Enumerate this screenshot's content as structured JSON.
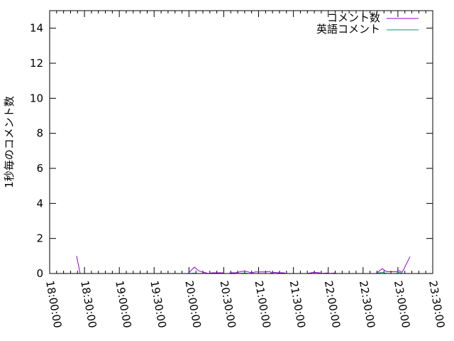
{
  "chart_data": {
    "type": "line",
    "title": "",
    "xlabel": "",
    "ylabel": "1秒毎のコメント数",
    "xlim": [
      "18:00:00",
      "23:30:00"
    ],
    "ylim": [
      0,
      15
    ],
    "x_ticks": [
      "18:00:00",
      "18:30:00",
      "19:00:00",
      "19:30:00",
      "20:00:00",
      "20:30:00",
      "21:00:00",
      "21:30:00",
      "22:00:00",
      "22:30:00",
      "23:00:00",
      "23:30:00"
    ],
    "y_ticks": [
      "0",
      "2",
      "4",
      "6",
      "8",
      "10",
      "12",
      "14"
    ],
    "grid": false,
    "legend_position": "top-right",
    "series": [
      {
        "name": "コメント数",
        "color": "#9400d3",
        "points": [
          [
            "18:23:13",
            1
          ],
          [
            "18:26:17",
            0
          ],
          [
            "19:59:10",
            0
          ],
          [
            "20:04:40",
            0.36
          ],
          [
            "20:08:20",
            0.16
          ],
          [
            "20:11:23",
            0.09
          ],
          [
            "20:14:27",
            0.04
          ],
          [
            "20:16:17",
            0
          ],
          [
            "20:20:33",
            0.04
          ],
          [
            "20:28:30",
            0.04
          ],
          [
            "20:30:57",
            0
          ],
          [
            "20:34:37",
            0
          ],
          [
            "20:35:50",
            0.04
          ],
          [
            "20:40:07",
            0.04
          ],
          [
            "20:43:47",
            0.09
          ],
          [
            "20:48:03",
            0.15
          ],
          [
            "20:51:07",
            0.09
          ],
          [
            "20:54:10",
            0.04
          ],
          [
            "20:57:13",
            0.09
          ],
          [
            "21:06:23",
            0.09
          ],
          [
            "21:09:27",
            0.12
          ],
          [
            "21:11:17",
            0.03
          ],
          [
            "21:13:43",
            0.07
          ],
          [
            "21:16:47",
            0.04
          ],
          [
            "21:21:40",
            0.04
          ],
          [
            "21:23:30",
            0
          ],
          [
            "21:41:50",
            0
          ],
          [
            "21:47:57",
            0.07
          ],
          [
            "21:52:13",
            0.04
          ],
          [
            "21:54:03",
            0
          ],
          [
            "21:59:33",
            0.03
          ],
          [
            "22:01:23",
            0
          ],
          [
            "22:05:40",
            0.03
          ],
          [
            "22:07:30",
            0
          ],
          [
            "22:41:07",
            0
          ],
          [
            "22:46:37",
            0.27
          ],
          [
            "22:50:17",
            0.1
          ],
          [
            "22:58:13",
            0.1
          ],
          [
            "23:01:17",
            0.16
          ],
          [
            "23:03:43",
            0.07
          ],
          [
            "23:10:27",
            0.96
          ]
        ]
      },
      {
        "name": "英語コメント",
        "color": "#009e73",
        "points": [
          [
            "18:23:13",
            0
          ],
          [
            "19:59:10",
            0
          ],
          [
            "20:04:40",
            0.02
          ],
          [
            "20:08:20",
            0
          ],
          [
            "20:43:47",
            0
          ],
          [
            "20:48:03",
            0.03
          ],
          [
            "20:51:07",
            0
          ],
          [
            "21:09:27",
            0
          ],
          [
            "21:11:17",
            0.02
          ],
          [
            "21:13:43",
            0
          ],
          [
            "22:41:07",
            0
          ],
          [
            "22:46:37",
            0.07
          ],
          [
            "22:50:17",
            0
          ],
          [
            "22:58:13",
            0
          ],
          [
            "23:01:17",
            0.07
          ],
          [
            "23:03:43",
            0
          ],
          [
            "23:10:27",
            0
          ]
        ]
      }
    ]
  }
}
